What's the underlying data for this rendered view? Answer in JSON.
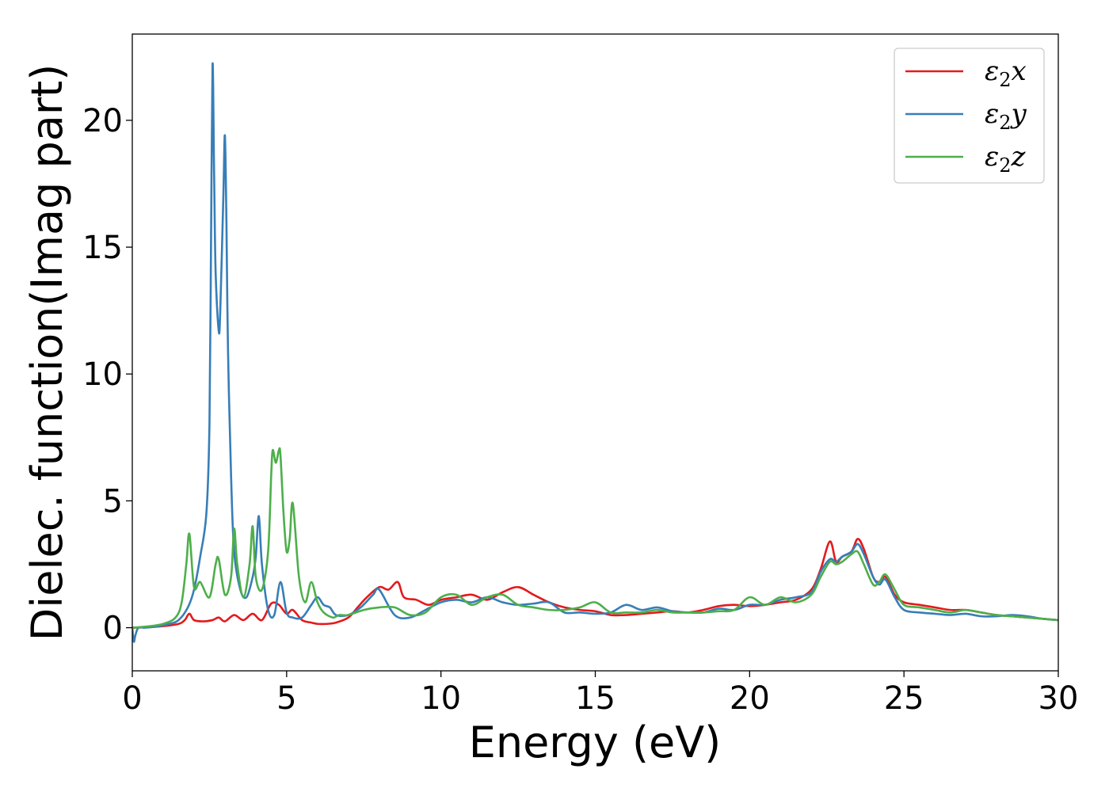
{
  "chart_data": {
    "type": "line",
    "title": "",
    "xlabel": "Energy (eV)",
    "ylabel": "Dielec. function(Imag part)",
    "xlim": [
      0,
      30
    ],
    "ylim": [
      -1.7,
      23.4
    ],
    "xticks": [
      0,
      5,
      10,
      15,
      20,
      25,
      30
    ],
    "yticks": [
      0,
      5,
      10,
      15,
      20
    ],
    "grid": false,
    "legend_position": "top-right",
    "series": [
      {
        "name": "ε2x",
        "legend_base": "ε",
        "legend_sub": "2",
        "legend_suffix": "x",
        "color": "#e41a1c",
        "x": [
          0,
          0.5,
          1.0,
          1.5,
          1.7,
          1.85,
          2.0,
          2.3,
          2.6,
          2.8,
          3.0,
          3.3,
          3.6,
          3.9,
          4.2,
          4.5,
          4.75,
          5.0,
          5.2,
          5.5,
          5.8,
          6.0,
          6.3,
          6.6,
          7.0,
          7.3,
          7.6,
          8.0,
          8.3,
          8.6,
          8.8,
          9.2,
          9.6,
          10.0,
          10.5,
          11.0,
          11.5,
          12.0,
          12.5,
          13.0,
          13.5,
          14.0,
          14.5,
          15.0,
          15.5,
          16.0,
          16.5,
          17.0,
          17.5,
          18.0,
          18.5,
          19.0,
          19.5,
          20.0,
          20.5,
          21.0,
          21.5,
          22.0,
          22.3,
          22.6,
          22.8,
          23.0,
          23.3,
          23.5,
          23.7,
          24.0,
          24.2,
          24.4,
          24.7,
          25.0,
          25.5,
          26.0,
          26.5,
          27.0,
          27.5,
          28.0,
          28.5,
          29.0,
          29.5,
          30.0
        ],
        "y": [
          0,
          0.02,
          0.06,
          0.15,
          0.3,
          0.55,
          0.3,
          0.25,
          0.3,
          0.4,
          0.25,
          0.5,
          0.3,
          0.55,
          0.3,
          0.95,
          0.9,
          0.55,
          0.7,
          0.3,
          0.2,
          0.15,
          0.15,
          0.2,
          0.4,
          0.8,
          1.2,
          1.6,
          1.5,
          1.8,
          1.2,
          1.1,
          0.9,
          1.1,
          1.2,
          1.3,
          1.1,
          1.4,
          1.6,
          1.3,
          1.0,
          0.8,
          0.7,
          0.65,
          0.5,
          0.5,
          0.55,
          0.6,
          0.65,
          0.6,
          0.7,
          0.85,
          0.9,
          0.85,
          0.9,
          1.0,
          1.1,
          1.5,
          2.3,
          3.4,
          2.6,
          2.8,
          3.0,
          3.5,
          3.1,
          2.0,
          1.8,
          2.0,
          1.3,
          1.0,
          0.9,
          0.8,
          0.7,
          0.7,
          0.6,
          0.5,
          0.45,
          0.4,
          0.35,
          0.3
        ]
      },
      {
        "name": "ε2y",
        "legend_base": "ε",
        "legend_sub": "2",
        "legend_suffix": "y",
        "color": "#377eb8",
        "x": [
          0,
          0.05,
          0.1,
          0.2,
          0.4,
          0.8,
          1.2,
          1.5,
          1.8,
          2.0,
          2.2,
          2.4,
          2.5,
          2.55,
          2.6,
          2.65,
          2.7,
          2.8,
          2.85,
          2.95,
          3.0,
          3.05,
          3.1,
          3.2,
          3.3,
          3.5,
          3.7,
          3.9,
          4.0,
          4.1,
          4.2,
          4.4,
          4.6,
          4.8,
          5.0,
          5.2,
          5.5,
          5.8,
          6.0,
          6.2,
          6.4,
          6.6,
          7.0,
          7.4,
          7.8,
          8.0,
          8.5,
          9.0,
          9.5,
          10.0,
          10.5,
          11.0,
          11.5,
          12.0,
          12.5,
          13.0,
          13.5,
          14.0,
          14.5,
          15.0,
          15.5,
          16.0,
          16.5,
          17.0,
          17.5,
          18.0,
          18.5,
          19.0,
          19.5,
          20.0,
          20.5,
          21.0,
          21.5,
          22.0,
          22.3,
          22.6,
          22.8,
          23.0,
          23.3,
          23.5,
          23.7,
          24.0,
          24.2,
          24.4,
          24.7,
          25.0,
          25.5,
          26.0,
          26.5,
          27.0,
          27.5,
          28.0,
          28.5,
          29.0,
          29.5,
          30.0
        ],
        "y": [
          0,
          -0.55,
          -0.3,
          0,
          0,
          0.05,
          0.15,
          0.3,
          0.8,
          1.5,
          2.8,
          4.5,
          8.0,
          15.0,
          22.2,
          18.0,
          14.0,
          11.7,
          12.5,
          17.0,
          19.4,
          16.0,
          11.0,
          6.0,
          3.0,
          1.5,
          1.2,
          2.0,
          2.8,
          4.4,
          2.5,
          0.7,
          0.5,
          1.8,
          0.6,
          0.4,
          0.4,
          0.9,
          1.2,
          0.9,
          0.8,
          0.5,
          0.5,
          0.8,
          1.3,
          1.5,
          0.5,
          0.4,
          0.7,
          1.0,
          1.1,
          1.0,
          1.2,
          1.0,
          0.9,
          0.95,
          1.0,
          0.6,
          0.6,
          0.55,
          0.6,
          0.9,
          0.7,
          0.8,
          0.65,
          0.6,
          0.6,
          0.75,
          0.7,
          0.9,
          0.9,
          1.1,
          1.2,
          1.4,
          2.2,
          2.7,
          2.6,
          2.8,
          3.0,
          3.3,
          2.9,
          2.0,
          1.7,
          1.9,
          1.2,
          0.7,
          0.6,
          0.55,
          0.5,
          0.55,
          0.45,
          0.45,
          0.5,
          0.45,
          0.35,
          0.3
        ]
      },
      {
        "name": "ε2z",
        "legend_base": "ε",
        "legend_sub": "2",
        "legend_suffix": "z",
        "color": "#4daf4a",
        "x": [
          0,
          0.5,
          1.0,
          1.4,
          1.6,
          1.75,
          1.85,
          2.0,
          2.2,
          2.5,
          2.7,
          2.8,
          3.0,
          3.2,
          3.3,
          3.4,
          3.6,
          3.8,
          3.9,
          4.0,
          4.2,
          4.4,
          4.5,
          4.55,
          4.65,
          4.75,
          4.8,
          4.9,
          5.0,
          5.1,
          5.2,
          5.4,
          5.6,
          5.8,
          6.0,
          6.2,
          6.5,
          6.7,
          7.0,
          7.5,
          8.0,
          8.5,
          9.0,
          9.5,
          10.0,
          10.5,
          11.0,
          11.5,
          12.0,
          12.5,
          13.0,
          13.5,
          14.0,
          14.5,
          15.0,
          15.5,
          16.0,
          16.5,
          17.0,
          17.5,
          18.0,
          18.5,
          19.0,
          19.5,
          20.0,
          20.5,
          21.0,
          21.5,
          22.0,
          22.3,
          22.6,
          22.8,
          23.0,
          23.3,
          23.5,
          23.7,
          24.0,
          24.2,
          24.4,
          24.7,
          25.0,
          25.5,
          26.0,
          26.5,
          27.0,
          27.5,
          28.0,
          28.5,
          29.0,
          29.5,
          30.0
        ],
        "y": [
          0,
          0.05,
          0.15,
          0.4,
          1.0,
          2.5,
          3.7,
          1.6,
          1.8,
          1.2,
          2.5,
          2.7,
          1.3,
          2.0,
          3.9,
          2.5,
          1.2,
          2.5,
          4.0,
          2.0,
          1.5,
          3.0,
          6.0,
          7.0,
          6.5,
          7.0,
          6.8,
          4.5,
          3.0,
          3.5,
          4.9,
          2.0,
          1.0,
          1.8,
          1.0,
          0.6,
          0.4,
          0.5,
          0.5,
          0.7,
          0.8,
          0.8,
          0.5,
          0.6,
          1.2,
          1.3,
          0.9,
          1.2,
          1.3,
          0.9,
          0.8,
          0.7,
          0.7,
          0.8,
          1.0,
          0.6,
          0.6,
          0.6,
          0.7,
          0.6,
          0.6,
          0.6,
          0.65,
          0.7,
          1.2,
          0.9,
          1.2,
          1.0,
          1.3,
          2.0,
          2.6,
          2.5,
          2.6,
          2.9,
          3.0,
          2.5,
          1.7,
          1.8,
          2.1,
          1.5,
          0.9,
          0.8,
          0.7,
          0.6,
          0.7,
          0.6,
          0.5,
          0.45,
          0.4,
          0.35,
          0.3
        ]
      }
    ]
  }
}
